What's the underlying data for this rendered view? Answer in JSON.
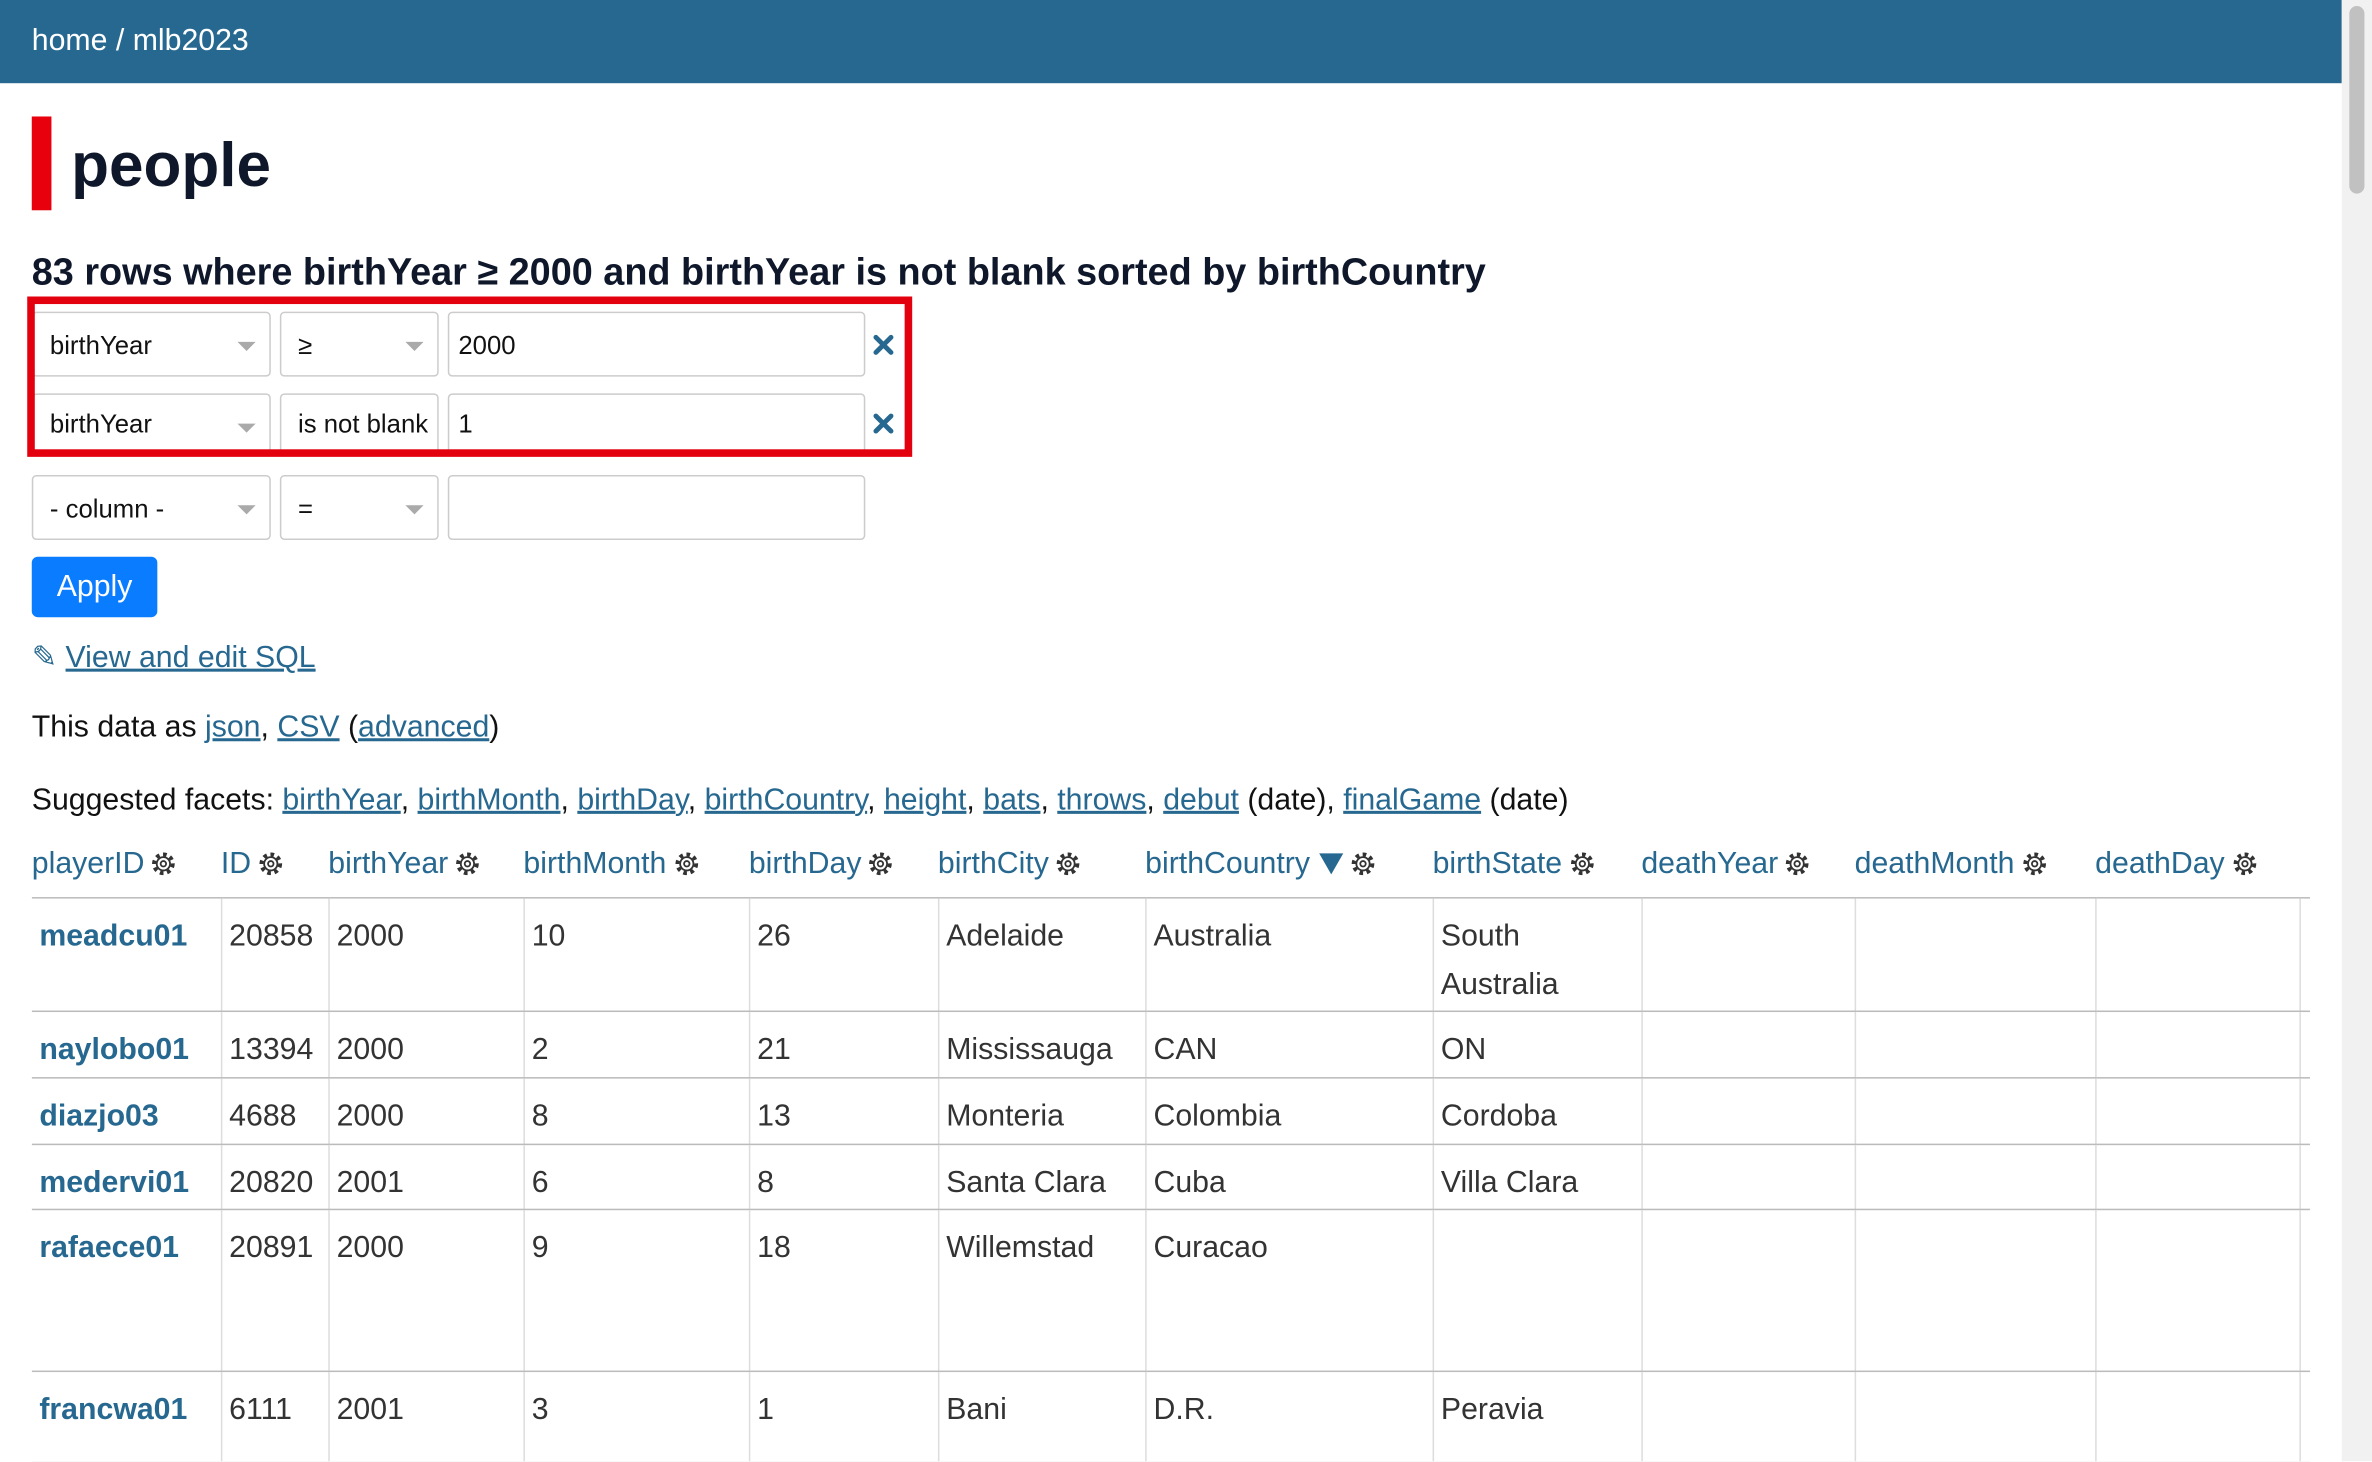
{
  "breadcrumb": {
    "items": [
      "home",
      "mlb2023"
    ],
    "separator": "/"
  },
  "title": "people",
  "summary": "83 rows where birthYear ≥ 2000 and birthYear is not blank sorted by birthCountry",
  "filters": [
    {
      "column": "birthYear",
      "op": "≥",
      "value": "2000"
    },
    {
      "column": "birthYear",
      "op": "is not blank",
      "value": "1"
    },
    {
      "column": "- column -",
      "op": "="
    }
  ],
  "apply": "Apply",
  "sql_link": {
    "icon": "✎",
    "text": "View and edit SQL"
  },
  "export": {
    "segments": [
      {
        "text": "This data as "
      },
      {
        "text": "json",
        "link": true
      },
      {
        "text": ", "
      },
      {
        "text": "CSV",
        "link": true
      },
      {
        "text": " ("
      },
      {
        "text": "advanced",
        "link": true
      },
      {
        "text": ")"
      }
    ]
  },
  "facets": {
    "segments": [
      {
        "text": "Suggested facets: "
      },
      {
        "text": "birthYear",
        "link": true
      },
      {
        "text": ", "
      },
      {
        "text": "birthMonth",
        "link": true
      },
      {
        "text": ", "
      },
      {
        "text": "birthDay",
        "link": true
      },
      {
        "text": ", "
      },
      {
        "text": "birthCountry",
        "link": true
      },
      {
        "text": ", "
      },
      {
        "text": "height",
        "link": true
      },
      {
        "text": ", "
      },
      {
        "text": "bats",
        "link": true
      },
      {
        "text": ", "
      },
      {
        "text": "throws",
        "link": true
      },
      {
        "text": ", "
      },
      {
        "text": "debut",
        "link": true
      },
      {
        "text": " (date), "
      },
      {
        "text": "finalGame",
        "link": true
      },
      {
        "text": " (date)"
      }
    ]
  },
  "table": {
    "sort_column": "birthCountry",
    "columns": [
      "playerID",
      "ID",
      "birthYear",
      "birthMonth",
      "birthDay",
      "birthCity",
      "birthCountry",
      "birthState",
      "deathYear",
      "deathMonth",
      "deathDay"
    ],
    "rows": [
      [
        "meadcu01",
        20858,
        2000,
        10,
        26,
        "Adelaide",
        "Australia",
        "South Australia",
        null,
        null,
        null
      ],
      [
        "naylobo01",
        13394,
        2000,
        2,
        21,
        "Mississauga",
        "CAN",
        "ON",
        null,
        null,
        null
      ],
      [
        "diazjo03",
        4688,
        2000,
        8,
        13,
        "Monteria",
        "Colombia",
        "Cordoba",
        null,
        null,
        null
      ],
      [
        "medervi01",
        20820,
        2001,
        6,
        8,
        "Santa Clara",
        "Cuba",
        "Villa Clara",
        null,
        null,
        null
      ],
      [
        "rafaece01",
        20891,
        2000,
        9,
        18,
        "Willemstad",
        "Curacao",
        null,
        null,
        null,
        null
      ],
      [
        "francwa01",
        6111,
        2001,
        3,
        1,
        "Bani",
        "D.R.",
        "Peravia",
        null,
        null,
        null
      ]
    ]
  }
}
